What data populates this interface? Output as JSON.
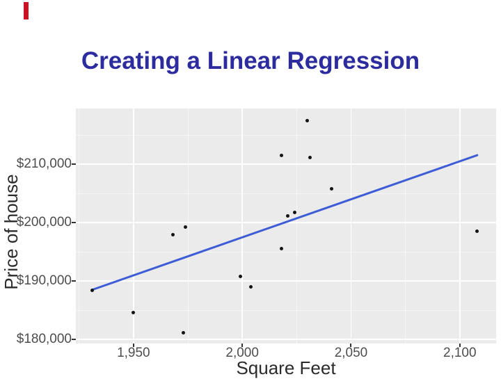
{
  "slide": {
    "title": "Creating a Linear Regression",
    "title_color": "#2C2C9E",
    "accent_bar_color": "#CC1122"
  },
  "chart_data": {
    "type": "scatter",
    "title": "",
    "xlabel": "Square Feet",
    "ylabel": "Price of house",
    "panel_bg": "#EBEBEB",
    "grid_color": "#FFFFFF",
    "point_color": "#141414",
    "tick_text_color": "#4d4d4d",
    "xlim": [
      1923.5,
      2116.7
    ],
    "ylim": [
      179300,
      219550
    ],
    "x_ticks": {
      "values": [
        1950,
        2000,
        2050,
        2100
      ],
      "labels": [
        "1,950",
        "2,000",
        "2,050",
        "2,100"
      ]
    },
    "y_ticks": {
      "values": [
        180000,
        190000,
        200000,
        210000
      ],
      "labels": [
        "$180,000",
        "$190,000",
        "$200,000",
        "$210,000"
      ]
    },
    "grid": {
      "major": true,
      "minor": true,
      "minor_rule": "midpoints"
    },
    "points": [
      {
        "sqft": 1931,
        "price": 188450
      },
      {
        "sqft": 1950,
        "price": 184650
      },
      {
        "sqft": 1968,
        "price": 197900
      },
      {
        "sqft": 1973,
        "price": 181200
      },
      {
        "sqft": 1974,
        "price": 199200
      },
      {
        "sqft": 1999,
        "price": 190850
      },
      {
        "sqft": 2004,
        "price": 188950
      },
      {
        "sqft": 2018,
        "price": 195550
      },
      {
        "sqft": 2018,
        "price": 211550
      },
      {
        "sqft": 2021,
        "price": 201150
      },
      {
        "sqft": 2024,
        "price": 201700
      },
      {
        "sqft": 2030,
        "price": 217500
      },
      {
        "sqft": 2031,
        "price": 211100
      },
      {
        "sqft": 2041,
        "price": 205800
      },
      {
        "sqft": 2108,
        "price": 198500
      }
    ],
    "regression_line": {
      "x1": 1931,
      "y1": 188500,
      "x2": 2108,
      "y2": 211550,
      "color": "#3D5CD6",
      "width": 3
    }
  }
}
